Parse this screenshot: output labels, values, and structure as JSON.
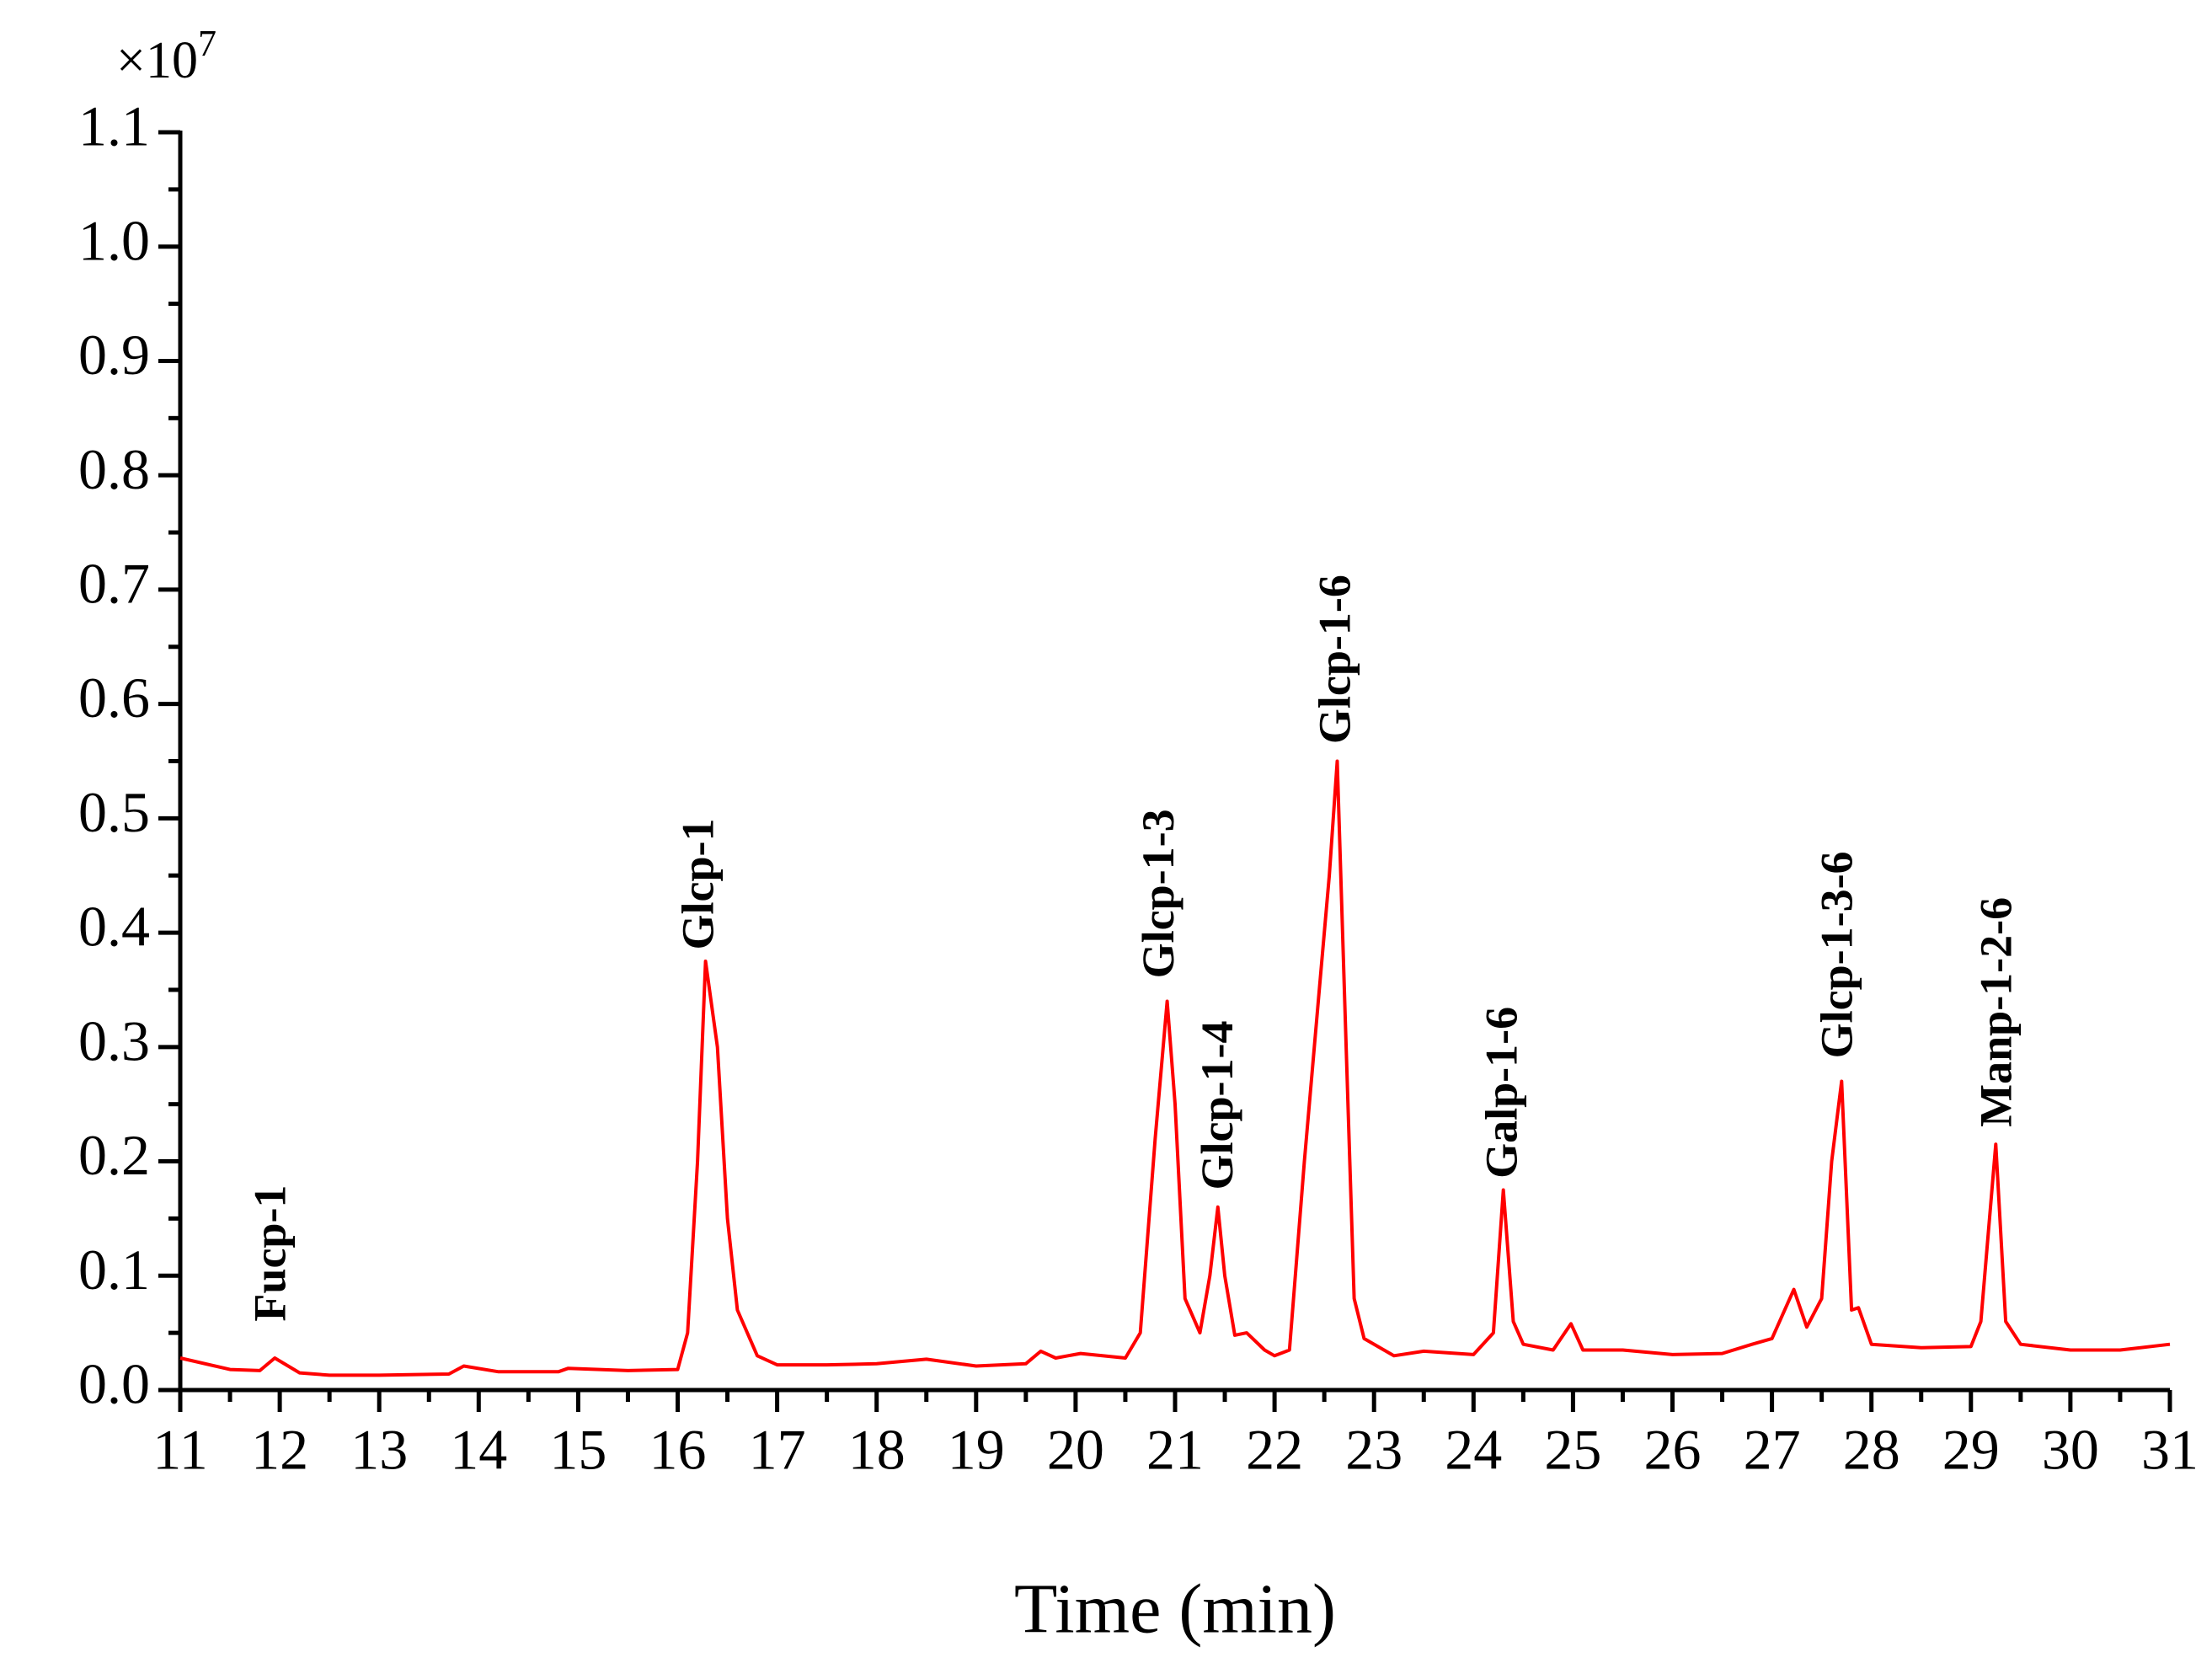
{
  "chart_data": {
    "type": "line",
    "multiplier": {
      "base": "×10",
      "exponent": "7"
    },
    "xlabel": "Time (min)",
    "color": "#ff0000",
    "x": [
      11,
      11.5,
      11.8,
      11.95,
      12.2,
      12.5,
      13,
      13.7,
      13.85,
      14.2,
      14.8,
      14.9,
      15.5,
      16.0,
      16.1,
      16.2,
      16.28,
      16.4,
      16.5,
      16.6,
      16.8,
      17,
      17.5,
      18,
      18.5,
      19,
      19.5,
      19.65,
      19.8,
      20.05,
      20.5,
      20.65,
      20.8,
      20.92,
      21.0,
      21.1,
      21.25,
      21.35,
      21.43,
      21.5,
      21.6,
      21.72,
      21.9,
      22.0,
      22.15,
      22.3,
      22.45,
      22.55,
      22.63,
      22.72,
      22.8,
      22.9,
      23.2,
      23.5,
      24.0,
      24.2,
      24.3,
      24.4,
      24.5,
      24.8,
      24.98,
      25.1,
      25.5,
      26,
      26.5,
      26.8,
      27.0,
      27.22,
      27.35,
      27.5,
      27.6,
      27.7,
      27.8,
      27.87,
      28,
      28.5,
      29,
      29.1,
      29.25,
      29.35,
      29.5,
      30,
      30.5,
      31
    ],
    "values": [
      0.028,
      0.018,
      0.017,
      0.028,
      0.015,
      0.013,
      0.013,
      0.014,
      0.021,
      0.016,
      0.016,
      0.019,
      0.017,
      0.018,
      0.05,
      0.2,
      0.375,
      0.3,
      0.15,
      0.07,
      0.03,
      0.022,
      0.022,
      0.023,
      0.027,
      0.021,
      0.023,
      0.034,
      0.028,
      0.032,
      0.028,
      0.05,
      0.22,
      0.34,
      0.25,
      0.08,
      0.05,
      0.1,
      0.16,
      0.1,
      0.048,
      0.05,
      0.035,
      0.03,
      0.035,
      0.2,
      0.35,
      0.45,
      0.55,
      0.3,
      0.08,
      0.045,
      0.03,
      0.034,
      0.031,
      0.05,
      0.175,
      0.06,
      0.04,
      0.035,
      0.058,
      0.035,
      0.035,
      0.031,
      0.032,
      0.04,
      0.045,
      0.088,
      0.055,
      0.08,
      0.2,
      0.27,
      0.07,
      0.072,
      0.04,
      0.037,
      0.038,
      0.06,
      0.215,
      0.06,
      0.04,
      0.035,
      0.035,
      0.04
    ],
    "xlim": [
      11,
      31
    ],
    "ylim": [
      0,
      1.1
    ],
    "xticks": [
      11,
      12,
      13,
      14,
      15,
      16,
      17,
      18,
      19,
      20,
      21,
      22,
      23,
      24,
      25,
      26,
      27,
      28,
      29,
      30,
      31
    ],
    "yticks": [
      {
        "value": 0,
        "label": "0.0"
      },
      0.1,
      0.2,
      0.3,
      0.4,
      0.5,
      0.6,
      0.7,
      0.8,
      0.9,
      {
        "value": 1,
        "label": "1.0"
      },
      1.1
    ],
    "xminorticks": [
      11.5,
      12.5,
      13.5,
      14.5,
      15.5,
      16.5,
      17.5,
      18.5,
      19.5,
      20.5,
      21.5,
      22.5,
      23.5,
      24.5,
      25.5,
      26.5,
      27.5,
      28.5,
      29.5,
      30.5
    ],
    "yminorticks": [
      0.05,
      0.15,
      0.25,
      0.35,
      0.45,
      0.55,
      0.65,
      0.75,
      0.85,
      0.95,
      1.05
    ],
    "annotations": [
      {
        "text": "Fucp-1"
      },
      {
        "text": "Glcp-1"
      },
      {
        "text": "Glcp-1-3"
      },
      {
        "text": "Glcp-1-4"
      },
      {
        "text": "Glcp-1-6"
      },
      {
        "text": "Galp-1-6"
      },
      {
        "text": "Glcp-1-3-6"
      },
      {
        "text": "Manp-1-2-6"
      }
    ]
  }
}
